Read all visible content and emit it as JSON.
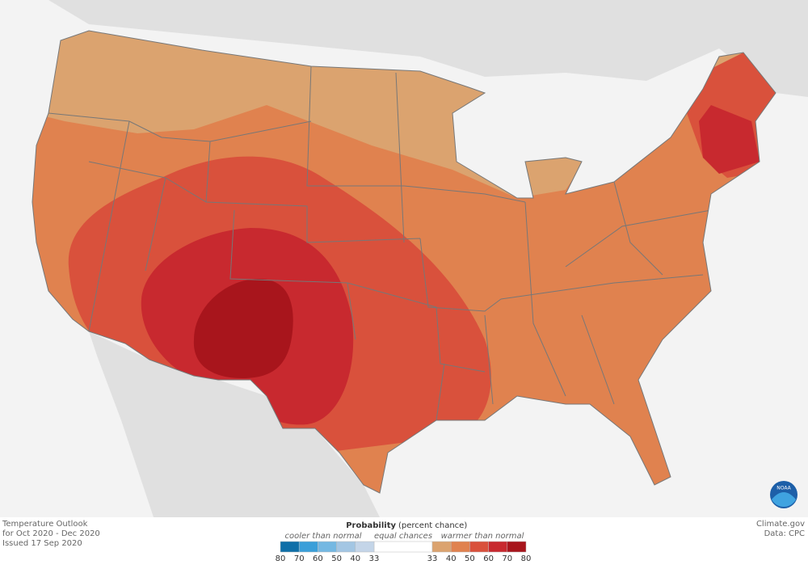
{
  "footer": {
    "title": "Temperature Outlook",
    "period": "for Oct 2020 - Dec 2020",
    "issued": "Issued 17 Sep 2020",
    "source": "Climate.gov",
    "data": "Data: CPC"
  },
  "legend": {
    "title": "Probability",
    "subtitle": "(percent chance)",
    "cooler": {
      "label": "cooler than normal",
      "ticks": [
        80,
        70,
        60,
        50,
        40,
        33
      ],
      "colors": [
        "#0f6fa8",
        "#3a9fd9",
        "#74b8e2",
        "#a3c6e3",
        "#c4d5e8"
      ]
    },
    "equal": {
      "label": "equal chances",
      "color": "#ffffff"
    },
    "warmer": {
      "label": "warmer than normal",
      "ticks": [
        33,
        40,
        50,
        60,
        70,
        80
      ],
      "colors": [
        "#dba36f",
        "#e0824f",
        "#d9513c",
        "#c8292f",
        "#a8151c"
      ]
    }
  },
  "logo": "NOAA"
}
